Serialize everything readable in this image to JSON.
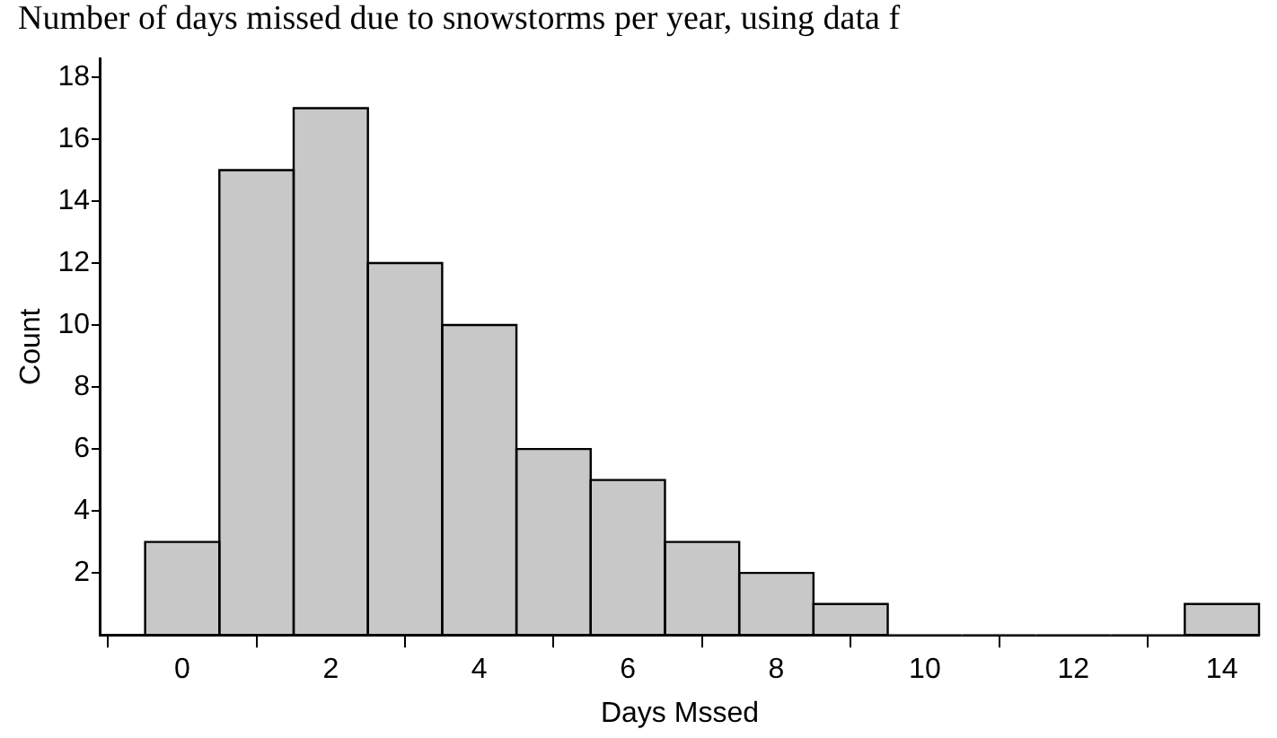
{
  "chart_data": {
    "type": "histogram",
    "title": "Number of days missed due to snowstorms per year, using data f",
    "xlabel": "Days Mssed",
    "ylabel": "Count",
    "bins": [
      -0.5,
      0.5,
      1.5,
      2.5,
      3.5,
      4.5,
      5.5,
      6.5,
      7.5,
      8.5,
      9.5,
      10.5,
      11.5,
      12.5,
      13.5,
      14.5
    ],
    "values": [
      3,
      15,
      17,
      12,
      10,
      6,
      5,
      3,
      2,
      1,
      0,
      0,
      0,
      0,
      1
    ],
    "color": "#c8c8c8",
    "xlim": [
      -1.1,
      14.5
    ],
    "xticks": [
      0,
      2,
      4,
      6,
      8,
      10,
      12,
      14
    ],
    "ylim": [
      0,
      18.6
    ],
    "yticks": [
      2,
      4,
      6,
      8,
      10,
      12,
      14,
      16,
      18
    ],
    "grid": false,
    "legend": false
  }
}
